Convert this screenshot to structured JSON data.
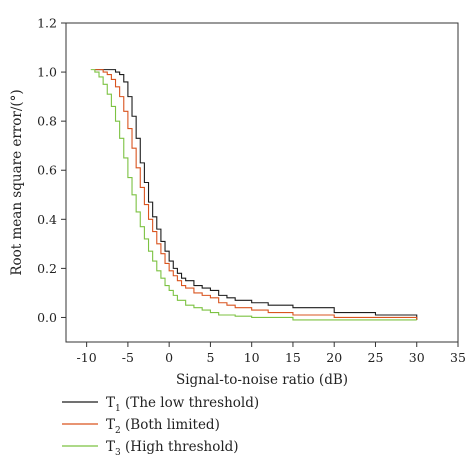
{
  "chart_data": {
    "type": "line",
    "title": "",
    "xlabel": "Signal-to-noise ratio (dB)",
    "ylabel": "Root mean square error/(°)",
    "xlim": [
      -12.5,
      35
    ],
    "ylim": [
      -0.1,
      1.2
    ],
    "xticks": [
      -10,
      -5,
      0,
      5,
      10,
      15,
      20,
      25,
      30,
      35
    ],
    "xtick_labels": [
      "-10",
      "-5",
      "0",
      "5",
      "10",
      "15",
      "20",
      "25",
      "30",
      "35"
    ],
    "yticks": [
      0.0,
      0.2,
      0.4,
      0.6,
      0.8,
      1.0,
      1.2
    ],
    "ytick_labels": [
      "0.0",
      "0.2",
      "0.4",
      "0.6",
      "0.8",
      "1.0",
      "1.2"
    ],
    "grid": false,
    "legend_position": "bottom-left, below plot",
    "series": [
      {
        "name": "T1 (The low threshold)",
        "legend_main": "T",
        "legend_sub": "1",
        "legend_rest": " (The low threshold)",
        "color": "#1c1c1c",
        "x": [
          -9,
          -8,
          -7,
          -6.5,
          -6,
          -5.5,
          -5,
          -4.5,
          -4,
          -3.5,
          -3,
          -2.5,
          -2,
          -1.5,
          -1,
          -0.5,
          0,
          0.5,
          1,
          1.5,
          2,
          3,
          4,
          5,
          6,
          7,
          8,
          10,
          12,
          15,
          20,
          25,
          30
        ],
        "y": [
          1.01,
          1.01,
          1.01,
          1.0,
          0.99,
          0.96,
          0.9,
          0.82,
          0.73,
          0.63,
          0.55,
          0.47,
          0.41,
          0.36,
          0.31,
          0.27,
          0.23,
          0.2,
          0.18,
          0.16,
          0.15,
          0.13,
          0.12,
          0.11,
          0.09,
          0.08,
          0.07,
          0.06,
          0.05,
          0.04,
          0.02,
          0.01,
          -0.01
        ]
      },
      {
        "name": "T2 (Both limited)",
        "legend_main": "T",
        "legend_sub": "2",
        "legend_rest": " (Both limited)",
        "color": "#d9541f",
        "x": [
          -9,
          -8,
          -7.5,
          -7,
          -6.5,
          -6,
          -5.5,
          -5,
          -4.5,
          -4,
          -3.5,
          -3,
          -2.5,
          -2,
          -1.5,
          -1,
          -0.5,
          0,
          0.5,
          1,
          1.5,
          2,
          3,
          4,
          5,
          6,
          7,
          8,
          10,
          12,
          15,
          20,
          25,
          30
        ],
        "y": [
          1.01,
          1.0,
          0.99,
          0.97,
          0.94,
          0.9,
          0.84,
          0.77,
          0.69,
          0.61,
          0.53,
          0.46,
          0.4,
          0.35,
          0.3,
          0.26,
          0.22,
          0.19,
          0.17,
          0.15,
          0.13,
          0.12,
          0.1,
          0.09,
          0.08,
          0.06,
          0.05,
          0.04,
          0.03,
          0.02,
          0.01,
          0.0,
          0.0,
          -0.01
        ]
      },
      {
        "name": "T3 (High threshold)",
        "legend_main": "T",
        "legend_sub": "3",
        "legend_rest": " (High threshold)",
        "color": "#7cc242",
        "x": [
          -9.5,
          -9,
          -8.5,
          -8,
          -7.5,
          -7,
          -6.5,
          -6,
          -5.5,
          -5,
          -4.5,
          -4,
          -3.5,
          -3,
          -2.5,
          -2,
          -1.5,
          -1,
          -0.5,
          0,
          0.5,
          1,
          2,
          3,
          4,
          5,
          6,
          8,
          10,
          12,
          15,
          20,
          25,
          30
        ],
        "y": [
          1.01,
          1.0,
          0.98,
          0.95,
          0.91,
          0.86,
          0.8,
          0.73,
          0.65,
          0.57,
          0.5,
          0.43,
          0.37,
          0.32,
          0.27,
          0.23,
          0.19,
          0.16,
          0.13,
          0.11,
          0.09,
          0.07,
          0.05,
          0.04,
          0.03,
          0.02,
          0.01,
          0.005,
          0.0,
          0.0,
          -0.01,
          -0.01,
          -0.01,
          -0.01
        ]
      }
    ]
  }
}
